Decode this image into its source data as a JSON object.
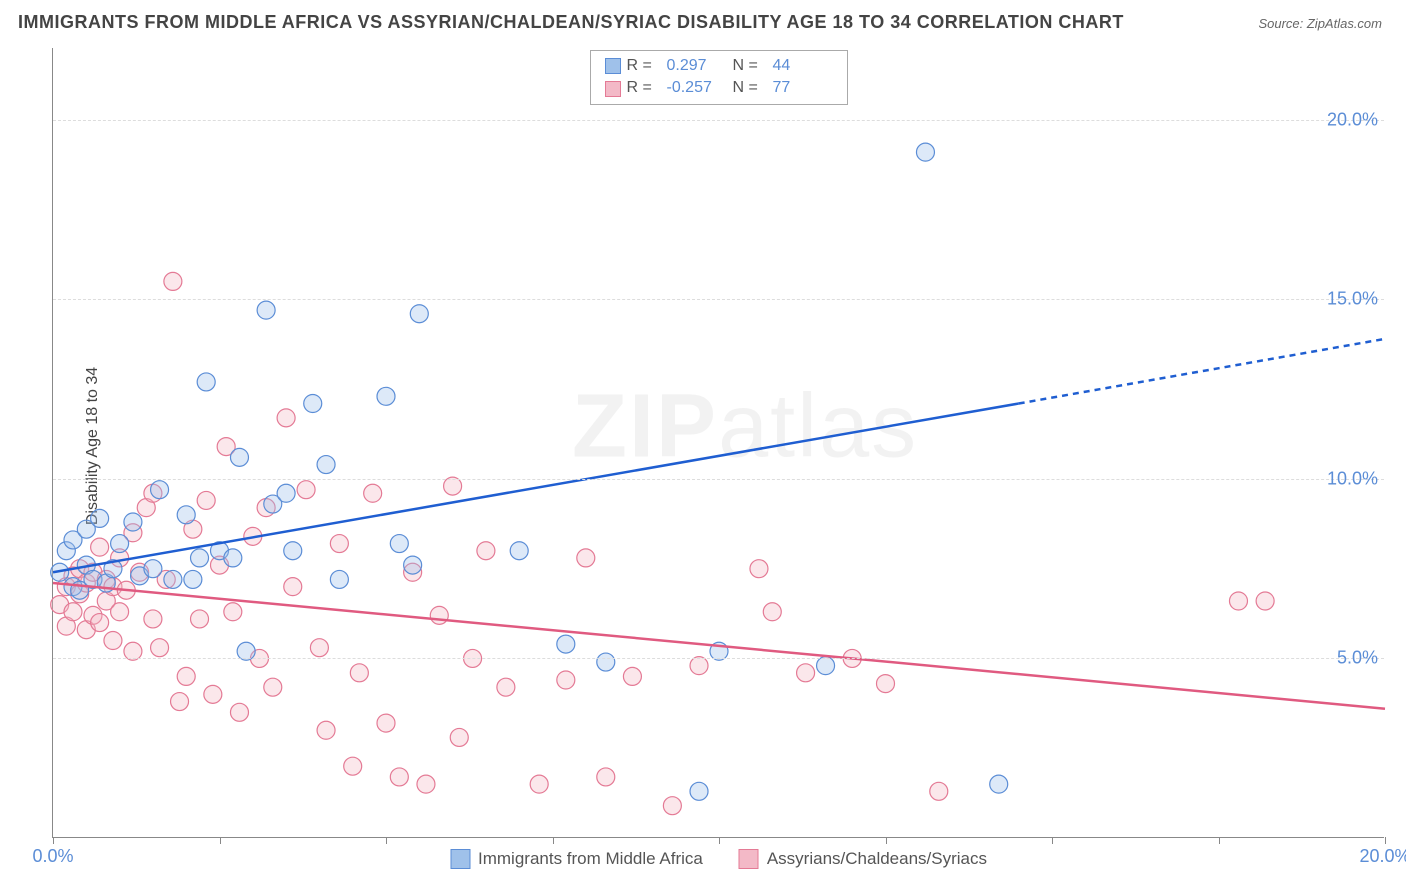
{
  "title": "IMMIGRANTS FROM MIDDLE AFRICA VS ASSYRIAN/CHALDEAN/SYRIAC DISABILITY AGE 18 TO 34 CORRELATION CHART",
  "source_prefix": "Source: ",
  "source_name": "ZipAtlas.com",
  "y_axis_label": "Disability Age 18 to 34",
  "watermark_bold": "ZIP",
  "watermark_light": "atlas",
  "chart": {
    "type": "scatter",
    "xlim": [
      0,
      20
    ],
    "ylim": [
      0,
      22
    ],
    "x_ticks": [
      0,
      2.5,
      5,
      7.5,
      10,
      12.5,
      15,
      17.5,
      20
    ],
    "x_tick_labels": {
      "0": "0.0%",
      "20": "20.0%"
    },
    "y_gridlines": [
      5,
      10,
      15,
      20
    ],
    "y_tick_labels": {
      "5": "5.0%",
      "10": "10.0%",
      "15": "15.0%",
      "20": "20.0%"
    },
    "background_color": "#ffffff",
    "grid_color": "#dddddd",
    "axis_color": "#888888",
    "tick_label_color": "#5b8dd6",
    "marker_radius": 9,
    "marker_fill_opacity": 0.35,
    "marker_stroke_width": 1.2
  },
  "series": [
    {
      "key": "middle_africa",
      "label": "Immigrants from Middle Africa",
      "color_fill": "#9fc1ea",
      "color_stroke": "#5b8dd6",
      "R": "0.297",
      "N": "44",
      "trend": {
        "x1": 0,
        "y1": 7.4,
        "x2": 14.5,
        "y2": 12.1,
        "x2_ext": 20,
        "y2_ext": 13.9,
        "color": "#1f5ed1",
        "width": 2.5,
        "dash_after_x": 14.7
      },
      "points": [
        [
          0.1,
          7.4
        ],
        [
          0.2,
          8.0
        ],
        [
          0.3,
          7.0
        ],
        [
          0.3,
          8.3
        ],
        [
          0.4,
          6.9
        ],
        [
          0.5,
          7.6
        ],
        [
          0.5,
          8.6
        ],
        [
          0.6,
          7.2
        ],
        [
          0.7,
          8.9
        ],
        [
          0.8,
          7.1
        ],
        [
          0.9,
          7.5
        ],
        [
          1.0,
          8.2
        ],
        [
          1.2,
          8.8
        ],
        [
          1.3,
          7.3
        ],
        [
          1.5,
          7.5
        ],
        [
          1.6,
          9.7
        ],
        [
          1.8,
          7.2
        ],
        [
          2.0,
          9.0
        ],
        [
          2.1,
          7.2
        ],
        [
          2.2,
          7.8
        ],
        [
          2.3,
          12.7
        ],
        [
          2.5,
          8.0
        ],
        [
          2.7,
          7.8
        ],
        [
          2.8,
          10.6
        ],
        [
          2.9,
          5.2
        ],
        [
          3.2,
          14.7
        ],
        [
          3.3,
          9.3
        ],
        [
          3.5,
          9.6
        ],
        [
          3.6,
          8.0
        ],
        [
          3.9,
          12.1
        ],
        [
          4.1,
          10.4
        ],
        [
          4.3,
          7.2
        ],
        [
          5.0,
          12.3
        ],
        [
          5.2,
          8.2
        ],
        [
          5.4,
          7.6
        ],
        [
          5.5,
          14.6
        ],
        [
          7.0,
          8.0
        ],
        [
          7.7,
          5.4
        ],
        [
          8.3,
          4.9
        ],
        [
          9.7,
          1.3
        ],
        [
          10.0,
          5.2
        ],
        [
          11.6,
          4.8
        ],
        [
          13.1,
          19.1
        ],
        [
          14.2,
          1.5
        ]
      ]
    },
    {
      "key": "assyrian",
      "label": "Assyrians/Chaldeans/Syriacs",
      "color_fill": "#f3b9c7",
      "color_stroke": "#e47a95",
      "R": "-0.257",
      "N": "77",
      "trend": {
        "x1": 0,
        "y1": 7.1,
        "x2": 20,
        "y2": 3.6,
        "color": "#e05a80",
        "width": 2.5
      },
      "points": [
        [
          0.1,
          6.5
        ],
        [
          0.2,
          7.0
        ],
        [
          0.2,
          5.9
        ],
        [
          0.3,
          7.3
        ],
        [
          0.3,
          6.3
        ],
        [
          0.4,
          6.8
        ],
        [
          0.4,
          7.5
        ],
        [
          0.5,
          5.8
        ],
        [
          0.5,
          7.1
        ],
        [
          0.6,
          6.2
        ],
        [
          0.6,
          7.4
        ],
        [
          0.7,
          6.0
        ],
        [
          0.7,
          8.1
        ],
        [
          0.8,
          6.6
        ],
        [
          0.8,
          7.2
        ],
        [
          0.9,
          5.5
        ],
        [
          0.9,
          7.0
        ],
        [
          1.0,
          6.3
        ],
        [
          1.0,
          7.8
        ],
        [
          1.1,
          6.9
        ],
        [
          1.2,
          8.5
        ],
        [
          1.2,
          5.2
        ],
        [
          1.3,
          7.4
        ],
        [
          1.4,
          9.2
        ],
        [
          1.5,
          9.6
        ],
        [
          1.5,
          6.1
        ],
        [
          1.6,
          5.3
        ],
        [
          1.7,
          7.2
        ],
        [
          1.8,
          15.5
        ],
        [
          1.9,
          3.8
        ],
        [
          2.0,
          4.5
        ],
        [
          2.1,
          8.6
        ],
        [
          2.2,
          6.1
        ],
        [
          2.3,
          9.4
        ],
        [
          2.4,
          4.0
        ],
        [
          2.5,
          7.6
        ],
        [
          2.6,
          10.9
        ],
        [
          2.7,
          6.3
        ],
        [
          2.8,
          3.5
        ],
        [
          3.0,
          8.4
        ],
        [
          3.1,
          5.0
        ],
        [
          3.2,
          9.2
        ],
        [
          3.3,
          4.2
        ],
        [
          3.5,
          11.7
        ],
        [
          3.6,
          7.0
        ],
        [
          3.8,
          9.7
        ],
        [
          4.0,
          5.3
        ],
        [
          4.1,
          3.0
        ],
        [
          4.3,
          8.2
        ],
        [
          4.5,
          2.0
        ],
        [
          4.6,
          4.6
        ],
        [
          4.8,
          9.6
        ],
        [
          5.0,
          3.2
        ],
        [
          5.2,
          1.7
        ],
        [
          5.4,
          7.4
        ],
        [
          5.6,
          1.5
        ],
        [
          5.8,
          6.2
        ],
        [
          6.0,
          9.8
        ],
        [
          6.1,
          2.8
        ],
        [
          6.3,
          5.0
        ],
        [
          6.5,
          8.0
        ],
        [
          6.8,
          4.2
        ],
        [
          7.3,
          1.5
        ],
        [
          7.7,
          4.4
        ],
        [
          8.0,
          7.8
        ],
        [
          8.3,
          1.7
        ],
        [
          8.7,
          4.5
        ],
        [
          9.3,
          0.9
        ],
        [
          9.7,
          4.8
        ],
        [
          10.6,
          7.5
        ],
        [
          10.8,
          6.3
        ],
        [
          11.3,
          4.6
        ],
        [
          12.0,
          5.0
        ],
        [
          12.5,
          4.3
        ],
        [
          13.3,
          1.3
        ],
        [
          17.8,
          6.6
        ],
        [
          18.2,
          6.6
        ]
      ]
    }
  ],
  "stats_box": {
    "R_label": "R =",
    "N_label": "N ="
  },
  "legend": {
    "items": [
      "Immigrants from Middle Africa",
      "Assyrians/Chaldeans/Syriacs"
    ]
  }
}
